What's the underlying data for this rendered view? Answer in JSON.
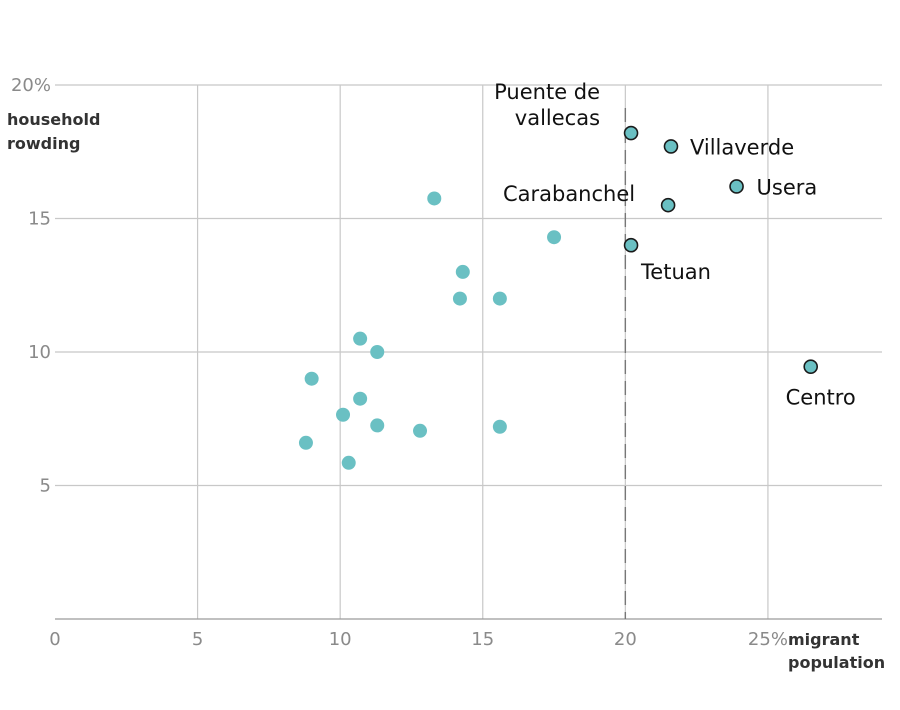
{
  "chart_data": {
    "type": "scatter",
    "xlabel": [
      "migrant",
      "population"
    ],
    "ylabel": [
      "household",
      "rowding"
    ],
    "xlim": [
      0,
      29
    ],
    "ylim": [
      0,
      20
    ],
    "x_ticks": [
      {
        "value": 0,
        "label": "0"
      },
      {
        "value": 5,
        "label": "5"
      },
      {
        "value": 10,
        "label": "10"
      },
      {
        "value": 15,
        "label": "15"
      },
      {
        "value": 20,
        "label": "20"
      },
      {
        "value": 25,
        "label": "25%"
      }
    ],
    "y_ticks": [
      {
        "value": 5,
        "label": "5"
      },
      {
        "value": 10,
        "label": "10"
      },
      {
        "value": 15,
        "label": "15"
      },
      {
        "value": 20,
        "label": "20%"
      }
    ],
    "reference_line_x": 20,
    "colors": {
      "point": "#6ac0c3",
      "outline": "#1a1a1a"
    },
    "points": [
      {
        "x": 13.3,
        "y": 15.75
      },
      {
        "x": 17.5,
        "y": 14.3
      },
      {
        "x": 14.3,
        "y": 13.0
      },
      {
        "x": 14.2,
        "y": 12.0
      },
      {
        "x": 15.6,
        "y": 12.0
      },
      {
        "x": 10.7,
        "y": 10.5
      },
      {
        "x": 11.3,
        "y": 10.0
      },
      {
        "x": 9.0,
        "y": 9.0
      },
      {
        "x": 10.7,
        "y": 8.25
      },
      {
        "x": 10.1,
        "y": 7.65
      },
      {
        "x": 11.3,
        "y": 7.25
      },
      {
        "x": 12.8,
        "y": 7.05
      },
      {
        "x": 15.6,
        "y": 7.2
      },
      {
        "x": 8.8,
        "y": 6.6
      },
      {
        "x": 10.3,
        "y": 5.85
      }
    ],
    "highlighted": [
      {
        "name": "Puente de vallecas",
        "lines": [
          "Puente de",
          "vallecas"
        ],
        "x": 20.2,
        "y": 18.2,
        "pos": "left"
      },
      {
        "name": "Villaverde",
        "lines": [
          "Villaverde"
        ],
        "x": 21.6,
        "y": 17.7,
        "pos": "right"
      },
      {
        "name": "Usera",
        "lines": [
          "Usera"
        ],
        "x": 23.9,
        "y": 16.2,
        "pos": "right-large"
      },
      {
        "name": "Carabanchel",
        "lines": [
          "Carabanchel"
        ],
        "x": 21.5,
        "y": 15.5,
        "pos": "left-up"
      },
      {
        "name": "Tetuan",
        "lines": [
          "Tetuan"
        ],
        "x": 20.2,
        "y": 14.0,
        "pos": "below-right"
      },
      {
        "name": "Centro",
        "lines": [
          "Centro"
        ],
        "x": 26.5,
        "y": 9.45,
        "pos": "below"
      }
    ]
  }
}
